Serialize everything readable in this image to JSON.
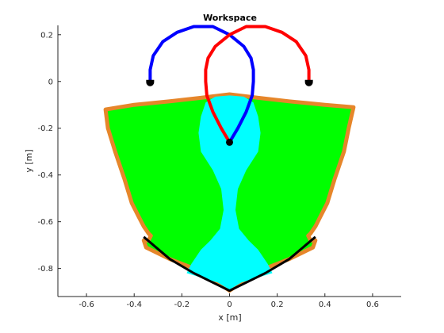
{
  "chart_data": {
    "type": "area",
    "title": "Workspace",
    "xlabel": "x [m]",
    "ylabel": "y [m]",
    "xlim": [
      -0.72,
      0.72
    ],
    "ylim": [
      -0.92,
      0.24
    ],
    "xticks": [
      -0.6,
      -0.4,
      -0.2,
      0,
      0.2,
      0.4,
      0.6
    ],
    "yticks": [
      0.2,
      0,
      -0.2,
      -0.4,
      -0.6,
      -0.8
    ],
    "xtick_labels": [
      "-0.6",
      "-0.4",
      "-0.2",
      "0",
      "0.2",
      "0.4",
      "0.6"
    ],
    "ytick_labels": [
      "0.2",
      "0",
      "-0.2",
      "-0.4",
      "-0.6",
      "-0.8"
    ],
    "grid": false,
    "legend": "none",
    "colors": {
      "outer_region": "#00ff00",
      "inner_region": "#00ffff",
      "boundary": "#e6862a",
      "lower_boundary": "#000000",
      "left_arm": "#0000ff",
      "right_arm": "#ff0000",
      "joints": "#000000"
    },
    "regions": [
      {
        "role": "outer",
        "points": [
          [
            -0.52,
            -0.12
          ],
          [
            -0.4,
            -0.1
          ],
          [
            -0.25,
            -0.085
          ],
          [
            -0.12,
            -0.07
          ],
          [
            0,
            -0.055
          ],
          [
            0.12,
            -0.07
          ],
          [
            0.25,
            -0.085
          ],
          [
            0.4,
            -0.1
          ],
          [
            0.52,
            -0.11
          ],
          [
            0.5,
            -0.2
          ],
          [
            0.48,
            -0.3
          ],
          [
            0.44,
            -0.42
          ],
          [
            0.41,
            -0.52
          ],
          [
            0.38,
            -0.58
          ],
          [
            0.36,
            -0.62
          ],
          [
            0.34,
            -0.65
          ],
          [
            0.33,
            -0.66
          ],
          [
            0.34,
            -0.68
          ],
          [
            0.36,
            -0.68
          ],
          [
            0.35,
            -0.71
          ],
          [
            0.25,
            -0.76
          ],
          [
            0.15,
            -0.8
          ],
          [
            0.05,
            -0.86
          ],
          [
            0,
            -0.895
          ],
          [
            -0.05,
            -0.86
          ],
          [
            -0.15,
            -0.8
          ],
          [
            -0.25,
            -0.76
          ],
          [
            -0.35,
            -0.71
          ],
          [
            -0.36,
            -0.68
          ],
          [
            -0.34,
            -0.68
          ],
          [
            -0.33,
            -0.66
          ],
          [
            -0.34,
            -0.65
          ],
          [
            -0.36,
            -0.62
          ],
          [
            -0.38,
            -0.58
          ],
          [
            -0.41,
            -0.52
          ],
          [
            -0.44,
            -0.42
          ],
          [
            -0.48,
            -0.3
          ],
          [
            -0.51,
            -0.2
          ]
        ]
      },
      {
        "role": "inner",
        "points": [
          [
            -0.06,
            -0.065
          ],
          [
            0,
            -0.06
          ],
          [
            0.06,
            -0.065
          ],
          [
            0.1,
            -0.09
          ],
          [
            0.12,
            -0.15
          ],
          [
            0.13,
            -0.22
          ],
          [
            0.12,
            -0.3
          ],
          [
            0.07,
            -0.38
          ],
          [
            0.035,
            -0.46
          ],
          [
            0.025,
            -0.55
          ],
          [
            0.04,
            -0.63
          ],
          [
            0.08,
            -0.68
          ],
          [
            0.12,
            -0.72
          ],
          [
            0.16,
            -0.78
          ],
          [
            0.18,
            -0.82
          ],
          [
            0.05,
            -0.86
          ],
          [
            0,
            -0.89
          ],
          [
            -0.05,
            -0.86
          ],
          [
            -0.18,
            -0.82
          ],
          [
            -0.16,
            -0.78
          ],
          [
            -0.12,
            -0.72
          ],
          [
            -0.08,
            -0.68
          ],
          [
            -0.04,
            -0.63
          ],
          [
            -0.025,
            -0.55
          ],
          [
            -0.035,
            -0.46
          ],
          [
            -0.07,
            -0.38
          ],
          [
            -0.12,
            -0.3
          ],
          [
            -0.13,
            -0.22
          ],
          [
            -0.12,
            -0.15
          ],
          [
            -0.1,
            -0.09
          ]
        ]
      }
    ],
    "lower_boundary": [
      [
        -0.36,
        -0.665
      ],
      [
        -0.25,
        -0.76
      ],
      [
        -0.15,
        -0.82
      ],
      [
        -0.05,
        -0.87
      ],
      [
        0,
        -0.895
      ],
      [
        0.05,
        -0.87
      ],
      [
        0.15,
        -0.82
      ],
      [
        0.25,
        -0.76
      ],
      [
        0.36,
        -0.665
      ]
    ],
    "arms": [
      {
        "name": "left",
        "points": [
          [
            -0.333,
            0
          ],
          [
            -0.333,
            0.05
          ],
          [
            -0.32,
            0.11
          ],
          [
            -0.28,
            0.17
          ],
          [
            -0.22,
            0.21
          ],
          [
            -0.15,
            0.235
          ],
          [
            -0.07,
            0.235
          ],
          [
            0,
            0.2
          ],
          [
            0.06,
            0.15
          ],
          [
            0.09,
            0.1
          ],
          [
            0.1,
            0.05
          ],
          [
            0.1,
            0
          ],
          [
            0.095,
            -0.06
          ],
          [
            0.07,
            -0.13
          ],
          [
            0.035,
            -0.2
          ],
          [
            0,
            -0.26
          ]
        ]
      },
      {
        "name": "right",
        "points": [
          [
            0.333,
            0
          ],
          [
            0.333,
            0.05
          ],
          [
            0.32,
            0.11
          ],
          [
            0.28,
            0.17
          ],
          [
            0.22,
            0.21
          ],
          [
            0.15,
            0.235
          ],
          [
            0.07,
            0.235
          ],
          [
            0,
            0.2
          ],
          [
            -0.06,
            0.15
          ],
          [
            -0.09,
            0.1
          ],
          [
            -0.1,
            0.05
          ],
          [
            -0.1,
            0
          ],
          [
            -0.095,
            -0.06
          ],
          [
            -0.07,
            -0.13
          ],
          [
            -0.035,
            -0.2
          ],
          [
            0,
            -0.26
          ]
        ]
      }
    ],
    "base_joints": [
      [
        -0.333,
        0
      ],
      [
        0.333,
        0
      ]
    ],
    "end_effector": [
      0,
      -0.26
    ]
  }
}
